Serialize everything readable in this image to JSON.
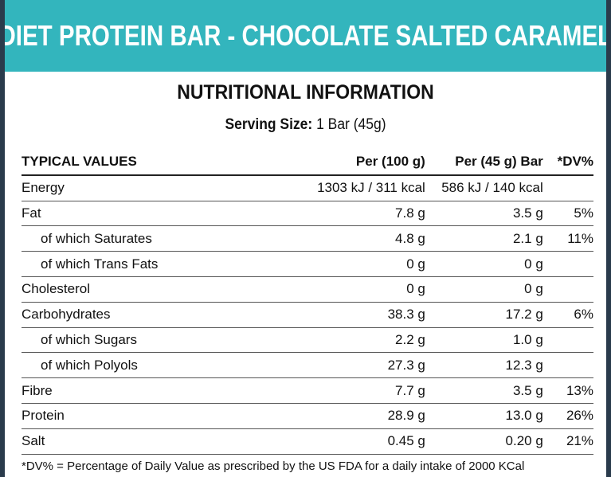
{
  "title": "DIET PROTEIN BAR - CHOCOLATE SALTED CARAMEL",
  "heading": "NUTRITIONAL INFORMATION",
  "serving": {
    "label": "Serving Size:",
    "value": "1 Bar (45g)"
  },
  "table": {
    "headers": {
      "name": "TYPICAL VALUES",
      "per100": "Per (100 g)",
      "perbar": "Per (45 g) Bar",
      "dv": "*DV%"
    },
    "rows": [
      {
        "name": "Energy",
        "per100": "1303 kJ / 311 kcal",
        "perbar": "586 kJ / 140 kcal",
        "dv": ""
      },
      {
        "name": "Fat",
        "per100": "7.8 g",
        "perbar": "3.5 g",
        "dv": "5%"
      },
      {
        "name": "of which Saturates",
        "per100": "4.8 g",
        "perbar": "2.1 g",
        "dv": "11%"
      },
      {
        "name": "of which Trans Fats",
        "per100": "0 g",
        "perbar": "0 g",
        "dv": ""
      },
      {
        "name": "Cholesterol",
        "per100": "0 g",
        "perbar": "0 g",
        "dv": ""
      },
      {
        "name": "Carbohydrates",
        "per100": "38.3 g",
        "perbar": "17.2 g",
        "dv": "6%"
      },
      {
        "name": "of which Sugars",
        "per100": "2.2 g",
        "perbar": "1.0 g",
        "dv": ""
      },
      {
        "name": "of which Polyols",
        "per100": "27.3 g",
        "perbar": "12.3 g",
        "dv": ""
      },
      {
        "name": "Fibre",
        "per100": "7.7 g",
        "perbar": "3.5 g",
        "dv": "13%"
      },
      {
        "name": "Protein",
        "per100": "28.9 g",
        "perbar": "13.0 g",
        "dv": "26%"
      },
      {
        "name": "Salt",
        "per100": "0.45 g",
        "perbar": "0.20 g",
        "dv": "21%"
      }
    ]
  },
  "footnote": "*DV% = Percentage of Daily Value as prescribed by the US FDA for a daily intake of 2000 KCal",
  "colors": {
    "banner": "#33b5bd",
    "background": "#2a3b4c"
  }
}
